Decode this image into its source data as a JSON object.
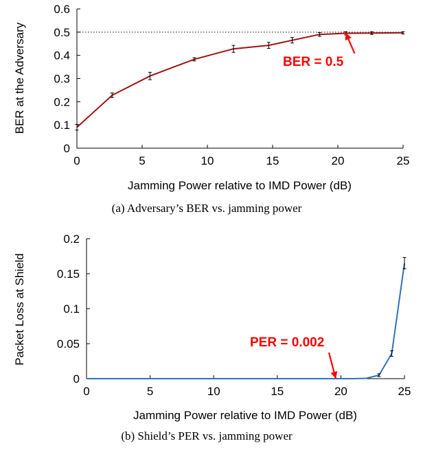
{
  "chart_data": [
    {
      "type": "line",
      "caption": "(a) Adversary’s BER vs. jamming power",
      "xlabel": "Jamming Power relative to IMD Power (dB)",
      "ylabel": "BER at the Adversary",
      "xlim": [
        0,
        25
      ],
      "ylim": [
        0,
        0.6
      ],
      "xticks": [
        "0",
        "5",
        "10",
        "15",
        "20",
        "25"
      ],
      "yticks": [
        "0",
        "0.1",
        "0.2",
        "0.3",
        "0.4",
        "0.5",
        "0.6"
      ],
      "line_color": "#a01010",
      "series": [
        {
          "x": [
            0,
            2.7,
            5.6,
            9.0,
            12.0,
            14.7,
            16.5,
            18.6,
            20.6,
            22.6,
            25
          ],
          "y": [
            0.09,
            0.228,
            0.311,
            0.383,
            0.428,
            0.443,
            0.465,
            0.49,
            0.495,
            0.496,
            0.497
          ],
          "err": [
            0.012,
            0.01,
            0.016,
            0.007,
            0.015,
            0.013,
            0.012,
            0.008,
            0.007,
            0.006,
            0.005
          ]
        }
      ],
      "reference_line": {
        "y": 0.5
      },
      "annotation": {
        "text": "BER = 0.5",
        "color": "#ff0000",
        "target_x": 20.6,
        "target_y": 0.497
      }
    },
    {
      "type": "line",
      "caption": "(b) Shield’s PER vs. jamming power",
      "xlabel": "Jamming Power relative to IMD Power (dB)",
      "ylabel": "Packet Loss at Shield",
      "xlim": [
        0,
        25
      ],
      "ylim": [
        0,
        0.2
      ],
      "xticks": [
        "0",
        "5",
        "10",
        "15",
        "20",
        "25"
      ],
      "yticks": [
        "0",
        "0.05",
        "0.1",
        "0.15",
        "0.2"
      ],
      "line_color": "#3070b8",
      "series": [
        {
          "x": [
            0,
            5,
            10,
            15,
            20,
            21,
            22,
            23,
            24,
            25
          ],
          "y": [
            0,
            0,
            0,
            0,
            0,
            0,
            0.0005,
            0.005,
            0.036,
            0.165
          ],
          "err": [
            0,
            0,
            0,
            0,
            0,
            0,
            0,
            0.002,
            0.004,
            0.008
          ]
        }
      ],
      "annotation": {
        "text": "PER = 0.002",
        "color": "#ff0000",
        "target_x": 19.6,
        "target_y": 0.0
      }
    }
  ]
}
